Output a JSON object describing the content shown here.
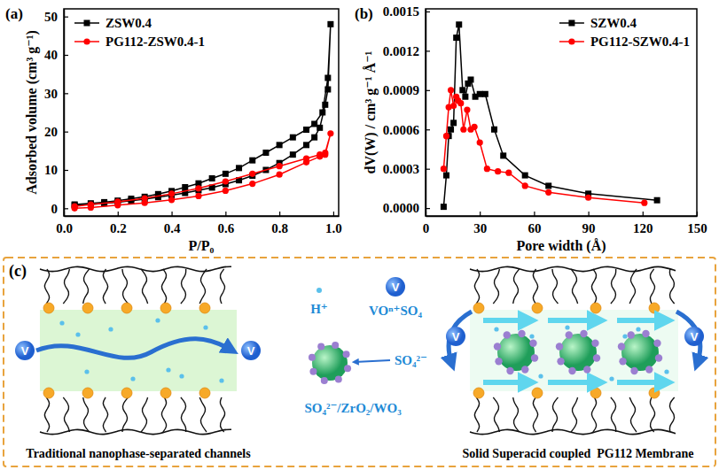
{
  "chart_data": [
    {
      "type": "line",
      "title": "(a)",
      "xlabel": "P/P₀",
      "ylabel": "Adsorbed volume (cm³ g⁻¹)",
      "xlim": [
        0,
        1.02
      ],
      "ylim": [
        -2,
        52
      ],
      "xticks": [
        {
          "value": 0,
          "label": "0.0"
        },
        0.2,
        0.4,
        0.6,
        0.8,
        {
          "value": 1,
          "label": "1.0"
        }
      ],
      "yticks": [
        0,
        10,
        20,
        30,
        40,
        50
      ],
      "legend": "upper left",
      "series": [
        {
          "name": "ZSW0.4",
          "color": "#000000",
          "marker": "square",
          "x": [
            0.04,
            0.1,
            0.15,
            0.2,
            0.25,
            0.3,
            0.35,
            0.4,
            0.45,
            0.5,
            0.55,
            0.6,
            0.65,
            0.7,
            0.75,
            0.8,
            0.85,
            0.9,
            0.93,
            0.95,
            0.97,
            0.98,
            0.99,
            0.98,
            0.96,
            0.93,
            0.9,
            0.85,
            0.8,
            0.75,
            0.7,
            0.65,
            0.6,
            0.55,
            0.5,
            0.45,
            0.4,
            0.35,
            0.3,
            0.25,
            0.2,
            0.15,
            0.1,
            0.04
          ],
          "values": [
            0.8,
            1.0,
            1.3,
            1.6,
            2.0,
            2.4,
            2.9,
            3.4,
            4.0,
            4.7,
            5.4,
            6.3,
            7.3,
            8.5,
            10,
            11.8,
            14,
            16.5,
            18.5,
            21,
            27,
            31,
            48,
            34,
            25,
            22,
            20.5,
            18.5,
            16.5,
            14.5,
            12.5,
            10.5,
            9,
            7.8,
            6.5,
            5.5,
            4.5,
            3.7,
            3.0,
            2.5,
            2.0,
            1.6,
            1.3,
            1.0
          ]
        },
        {
          "name": "PG112-ZSW0.4-1",
          "color": "#ff0000",
          "marker": "circle",
          "x": [
            0.04,
            0.1,
            0.2,
            0.3,
            0.4,
            0.5,
            0.6,
            0.7,
            0.8,
            0.9,
            0.95,
            0.97,
            0.99,
            0.97,
            0.95,
            0.9,
            0.8,
            0.7,
            0.6,
            0.5,
            0.4,
            0.3,
            0.2,
            0.1,
            0.04
          ],
          "values": [
            0,
            0.2,
            0.8,
            1.4,
            2.2,
            3.2,
            4.6,
            6.4,
            8.8,
            12,
            13.5,
            14,
            19.5,
            14.5,
            14,
            13,
            11,
            9,
            7,
            5.2,
            3.8,
            2.6,
            1.7,
            1.0,
            0.5
          ]
        }
      ]
    },
    {
      "type": "line",
      "title": "(b)",
      "xlabel": "Pore width (Å)",
      "ylabel": "dV(W) / cm³ g⁻¹ Å⁻¹",
      "xlim": [
        0,
        150
      ],
      "ylim": [
        -6e-05,
        0.00152
      ],
      "xticks": [
        0,
        30,
        60,
        90,
        120,
        150
      ],
      "yticks": [
        {
          "value": 0,
          "label": "0.0000"
        },
        0.0003,
        0.0006,
        0.0009,
        0.0012,
        0.0015
      ],
      "legend": "upper right",
      "series": [
        {
          "name": "SZW0.4",
          "color": "#000000",
          "marker": "square",
          "x": [
            10,
            11.5,
            12.8,
            14,
            15.5,
            17,
            18.5,
            20.5,
            22,
            23.5,
            25,
            27.5,
            30,
            33,
            38,
            43,
            55,
            68,
            90,
            128
          ],
          "values": [
            1e-05,
            0.00025,
            0.00055,
            0.0006,
            0.00065,
            0.0013,
            0.0014,
            0.0009,
            0.00085,
            0.00095,
            0.00098,
            0.00085,
            0.00087,
            0.00087,
            0.0006,
            0.0004,
            0.00025,
            0.00017,
            0.00011,
            6e-05
          ]
        },
        {
          "name": "PG112-SZW0.4-1",
          "color": "#ff0000",
          "marker": "circle",
          "x": [
            10,
            11.5,
            12.8,
            14,
            15.5,
            17,
            18,
            19.5,
            21,
            23,
            25,
            27,
            30,
            34,
            40,
            46,
            55,
            68,
            90,
            121
          ],
          "values": [
            0.0003,
            0.00055,
            0.00077,
            0.0009,
            0.00078,
            0.00085,
            0.00082,
            0.0008,
            0.0006,
            0.00075,
            0.0006,
            0.00062,
            0.0005,
            0.0003,
            0.00028,
            0.00027,
            0.00017,
            0.00012,
            8e-05,
            4e-05
          ]
        }
      ]
    }
  ],
  "diagram": {
    "panel_label": "(c)",
    "ion_label": "V",
    "left_caption": "Traditional nanophase-separated channels",
    "right_caption": "Solid Superacid coupled  PG112 Membrane",
    "legend": {
      "proton": "H⁺",
      "vanadium": "VOⁿ⁺SO₄",
      "sulfate": "SO₄²⁻",
      "superacid": "SO₄²⁻/ZrO₂/WO₃"
    }
  }
}
